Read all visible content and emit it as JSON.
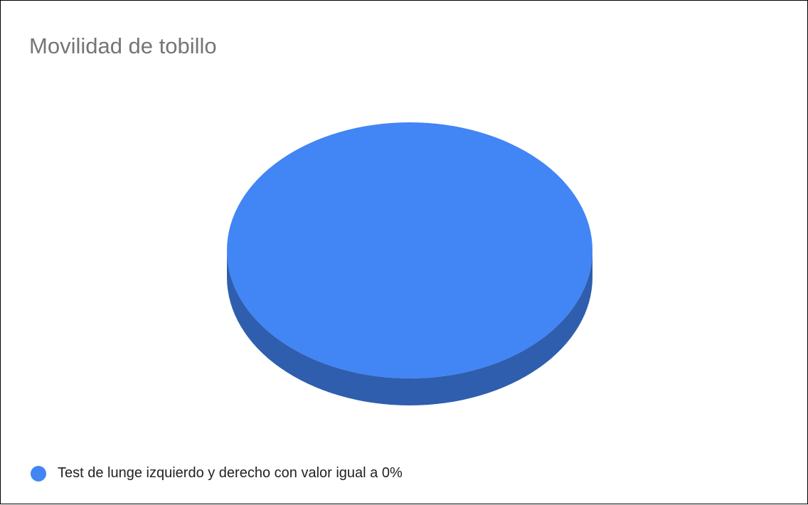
{
  "chart_data": {
    "type": "pie",
    "title": "Movilidad de tobillo",
    "is_3d": true,
    "slices": [
      {
        "label": "Test de lunge izquierdo y derecho con valor igual a 0%",
        "value": 100,
        "color": "#4285f4",
        "side_color": "#2f5eae"
      }
    ],
    "legend_position": "bottom-left"
  }
}
